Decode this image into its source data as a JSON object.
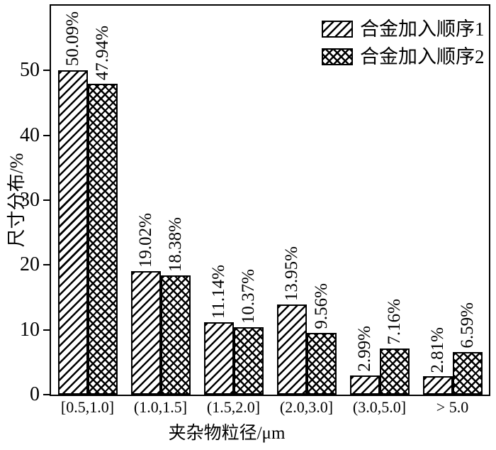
{
  "figure": {
    "background": "#ffffff",
    "ink": "#000000"
  },
  "chart_data": {
    "type": "bar",
    "title": "",
    "xlabel": "夹杂物粒径/μm",
    "ylabel": "尺寸分布/%",
    "categories": [
      "[0.5,1.0]",
      "(1.0,1.5]",
      "(1.5,2.0]",
      "(2.0,3.0]",
      "(3.0,5.0]",
      "> 5.0"
    ],
    "series": [
      {
        "name": "合金加入顺序1",
        "hatch": "diagonal",
        "values": [
          50.09,
          19.02,
          11.14,
          13.95,
          2.99,
          2.81
        ],
        "labels": [
          "50.09%",
          "19.02%",
          "11.14%",
          "13.95%",
          "2.99%",
          "2.81%"
        ]
      },
      {
        "name": "合金加入顺序2",
        "hatch": "crosshatch",
        "values": [
          47.94,
          18.38,
          10.37,
          9.56,
          7.16,
          6.59
        ],
        "labels": [
          "47.94%",
          "18.38%",
          "10.37%",
          "9.56%",
          "7.16%",
          "6.59%"
        ]
      }
    ],
    "ylim": [
      0,
      60
    ],
    "yticks": [
      0,
      10,
      20,
      30,
      40,
      50
    ],
    "ytick_labels": [
      "0",
      "10",
      "20",
      "30",
      "40",
      "50"
    ],
    "grid": false,
    "legend_position": "top-right-inside",
    "bar_value_label_rotation_deg": 90
  }
}
